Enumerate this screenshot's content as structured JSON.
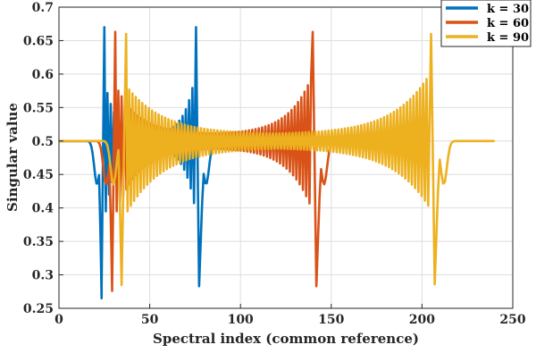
{
  "chart_data": {
    "type": "line",
    "xlabel": "Spectral index (common reference)",
    "ylabel": "Singular value",
    "xlim": [
      0,
      250
    ],
    "ylim": [
      0.25,
      0.7
    ],
    "xticks": [
      0,
      50,
      100,
      150,
      200,
      250
    ],
    "yticks": [
      0.25,
      0.3,
      0.35,
      0.4,
      0.45,
      0.5,
      0.55,
      0.6,
      0.65,
      0.7
    ],
    "grid": true,
    "legend_position": "top-right",
    "series": [
      {
        "name": "k = 30",
        "color": "#0072BD",
        "x_range": [
          0,
          80
        ],
        "baseline": 0.5,
        "oscillation_start": 23,
        "oscillation_end": 77,
        "dips": [
          [
            21,
            0.435
          ],
          [
            81,
            0.435
          ]
        ],
        "extremes": [
          [
            23.5,
            0.283
          ],
          [
            25,
            0.67
          ],
          [
            75.5,
            0.67
          ],
          [
            77.2,
            0.283
          ]
        ],
        "edge_oscillation": [
          [
            28,
            0.582,
            0.395
          ],
          [
            73,
            0.595,
            0.403
          ]
        ],
        "center_oscillation": [
          0.51,
          0.49
        ]
      },
      {
        "name": "k = 60",
        "color": "#D95319",
        "x_range": [
          0,
          160
        ],
        "baseline": 0.5,
        "oscillation_start": 29,
        "oscillation_end": 142,
        "dips": [
          [
            26,
            0.435
          ],
          [
            146,
            0.435
          ]
        ],
        "extremes": [
          [
            29.3,
            0.283
          ],
          [
            31,
            0.663
          ],
          [
            139.8,
            0.663
          ],
          [
            141.8,
            0.283
          ]
        ],
        "edge_oscillation": [
          [
            34,
            0.58,
            0.395
          ],
          [
            137,
            0.595,
            0.4
          ]
        ],
        "center_oscillation": [
          0.51,
          0.49
        ]
      },
      {
        "name": "k = 90",
        "color": "#EDB120",
        "x_range": [
          0,
          240
        ],
        "baseline": 0.5,
        "oscillation_start": 35,
        "oscillation_end": 207,
        "dips": [
          [
            30,
            0.435
          ],
          [
            212,
            0.435
          ]
        ],
        "extremes": [
          [
            34.5,
            0.286
          ],
          [
            37,
            0.66
          ],
          [
            205,
            0.66
          ],
          [
            207,
            0.286
          ]
        ],
        "edge_oscillation": [
          [
            40,
            0.58,
            0.395
          ],
          [
            202,
            0.6,
            0.4
          ]
        ],
        "center_oscillation": [
          0.51,
          0.49
        ]
      }
    ]
  }
}
